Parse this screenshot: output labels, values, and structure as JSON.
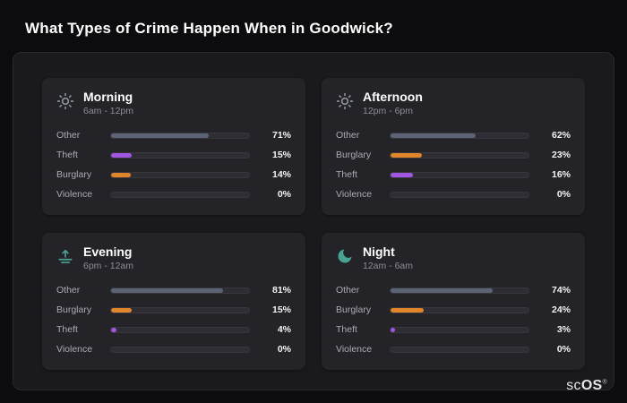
{
  "page": {
    "title": "What Types of Crime Happen When in Goodwick?"
  },
  "brand": {
    "prefix": "sc",
    "suffix": "OS",
    "reg": "®"
  },
  "colors": {
    "background": "#0c0c0e",
    "panel": "#1a1a1e",
    "card": "#232328",
    "track": "#2d2d33",
    "icon_gray": "#8d949b",
    "icon_teal": "#48a392",
    "bar_colors": {
      "Other": "#5b6375",
      "Theft": "#a156e2",
      "Burglary": "#e0852a",
      "Violence": "#5b6375"
    }
  },
  "chart_data": [
    {
      "type": "bar",
      "orientation": "horizontal",
      "title": "Morning",
      "subtitle": "6am - 12pm",
      "icon": "sun-icon",
      "categories": [
        "Other",
        "Theft",
        "Burglary",
        "Violence"
      ],
      "values": [
        71,
        15,
        14,
        0
      ],
      "value_labels": [
        "71%",
        "15%",
        "14%",
        "0%"
      ],
      "xlim": [
        0,
        100
      ]
    },
    {
      "type": "bar",
      "orientation": "horizontal",
      "title": "Afternoon",
      "subtitle": "12pm - 6pm",
      "icon": "sun-icon",
      "categories": [
        "Other",
        "Burglary",
        "Theft",
        "Violence"
      ],
      "values": [
        62,
        23,
        16,
        0
      ],
      "value_labels": [
        "62%",
        "23%",
        "16%",
        "0%"
      ],
      "xlim": [
        0,
        100
      ]
    },
    {
      "type": "bar",
      "orientation": "horizontal",
      "title": "Evening",
      "subtitle": "6pm - 12am",
      "icon": "sunset-icon",
      "categories": [
        "Other",
        "Burglary",
        "Theft",
        "Violence"
      ],
      "values": [
        81,
        15,
        4,
        0
      ],
      "value_labels": [
        "81%",
        "15%",
        "4%",
        "0%"
      ],
      "xlim": [
        0,
        100
      ]
    },
    {
      "type": "bar",
      "orientation": "horizontal",
      "title": "Night",
      "subtitle": "12am - 6am",
      "icon": "moon-icon",
      "categories": [
        "Other",
        "Burglary",
        "Theft",
        "Violence"
      ],
      "values": [
        74,
        24,
        3,
        0
      ],
      "value_labels": [
        "74%",
        "24%",
        "3%",
        "0%"
      ],
      "xlim": [
        0,
        100
      ]
    }
  ]
}
